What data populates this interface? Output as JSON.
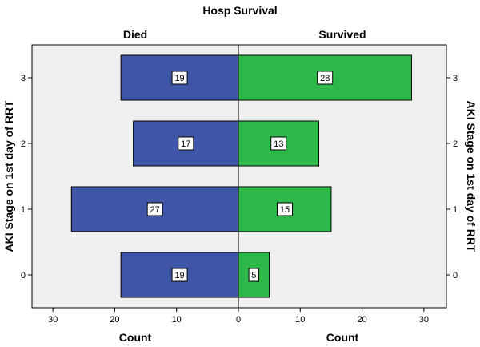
{
  "chart_data": {
    "type": "bar",
    "orientation": "horizontal",
    "layout": "population-pyramid",
    "title": "Hosp Survival",
    "panels": [
      "Died",
      "Survived"
    ],
    "xlabel": "Count",
    "ylabel": "AKI Stage on 1st day of RRT",
    "categories": [
      "0",
      "1",
      "2",
      "3"
    ],
    "series": [
      {
        "name": "Died",
        "values": [
          19,
          27,
          17,
          19
        ]
      },
      {
        "name": "Survived",
        "values": [
          5,
          15,
          13,
          28
        ]
      }
    ],
    "xticks": [
      30,
      20,
      10,
      0,
      10,
      20,
      30
    ],
    "xlim": [
      0,
      33
    ],
    "colors": {
      "died": "#3f56a8",
      "survived": "#2db84a",
      "plot_background": "#efefef"
    },
    "grid": false
  }
}
